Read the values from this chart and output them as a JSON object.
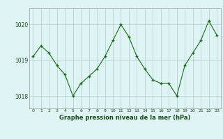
{
  "hours": [
    0,
    1,
    2,
    3,
    4,
    5,
    6,
    7,
    8,
    9,
    10,
    11,
    12,
    13,
    14,
    15,
    16,
    17,
    18,
    19,
    20,
    21,
    22,
    23
  ],
  "pressure": [
    1019.1,
    1019.4,
    1019.2,
    1018.85,
    1018.6,
    1018.0,
    1018.35,
    1018.55,
    1018.75,
    1019.1,
    1019.55,
    1020.0,
    1019.65,
    1019.1,
    1018.75,
    1018.45,
    1018.35,
    1018.35,
    1018.0,
    1018.85,
    1019.2,
    1019.55,
    1020.1,
    1019.7
  ],
  "line_color": "#1a6b1a",
  "marker_color": "#1a6b1a",
  "bg_color": "#dff4f4",
  "grid_color": "#aecccc",
  "text_color": "#1a4a1a",
  "xlabel": "Graphe pression niveau de la mer (hPa)",
  "ylim": [
    1017.65,
    1020.45
  ],
  "yticks": [
    1018,
    1019,
    1020
  ],
  "xticks": [
    0,
    1,
    2,
    3,
    4,
    5,
    6,
    7,
    8,
    9,
    10,
    11,
    12,
    13,
    14,
    15,
    16,
    17,
    18,
    19,
    20,
    21,
    22,
    23
  ]
}
